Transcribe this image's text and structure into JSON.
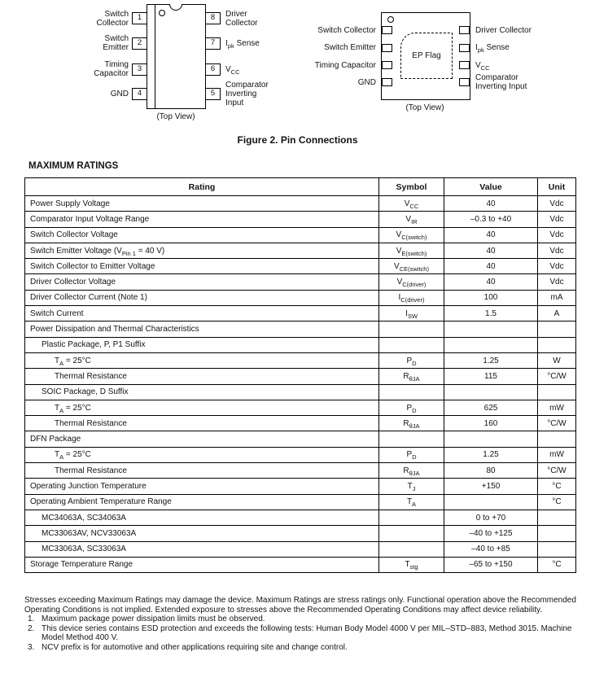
{
  "figure": {
    "caption": "Figure 2. Pin Connections",
    "top_view_label": "(Top View)",
    "dip": {
      "left_pins": [
        {
          "number": "1",
          "label_lines": [
            "Switch",
            "Collector"
          ]
        },
        {
          "number": "2",
          "label_lines": [
            "Switch",
            "Emitter"
          ]
        },
        {
          "number": "3",
          "label_lines": [
            "Timing",
            "Capacitor"
          ]
        },
        {
          "number": "4",
          "label_lines": [
            "GND"
          ]
        }
      ],
      "right_pins": [
        {
          "number": "8",
          "label_lines": [
            "Driver",
            "Collector"
          ]
        },
        {
          "number": "7",
          "label_lines": [
            "I~pk~ Sense"
          ]
        },
        {
          "number": "6",
          "label_lines": [
            "V~CC~"
          ]
        },
        {
          "number": "5",
          "label_lines": [
            "Comparator",
            "Inverting",
            "Input"
          ]
        }
      ]
    },
    "dfn": {
      "center_label": "EP Flag",
      "left_pins": [
        {
          "label_lines": [
            "Switch Collector"
          ]
        },
        {
          "label_lines": [
            "Switch Emitter"
          ]
        },
        {
          "label_lines": [
            "Timing Capacitor"
          ]
        },
        {
          "label_lines": [
            "GND"
          ]
        }
      ],
      "right_pins": [
        {
          "label_lines": [
            "Driver Collector"
          ]
        },
        {
          "label_lines": [
            "I~pk~ Sense"
          ]
        },
        {
          "label_lines": [
            "V~CC~"
          ]
        },
        {
          "label_lines": [
            "Comparator",
            "Inverting Input"
          ]
        }
      ]
    }
  },
  "table": {
    "title": "MAXIMUM RATINGS",
    "headers": [
      "Rating",
      "Symbol",
      "Value",
      "Unit"
    ],
    "rows": [
      {
        "rating": "Power Supply Voltage",
        "indent": 0,
        "symbol": "V~CC~",
        "value": "40",
        "unit": "Vdc"
      },
      {
        "rating": "Comparator Input Voltage Range",
        "indent": 0,
        "symbol": "V~IR~",
        "value": "–0.3 to +40",
        "unit": "Vdc"
      },
      {
        "rating": "Switch Collector Voltage",
        "indent": 0,
        "symbol": "V~C(switch)~",
        "value": "40",
        "unit": "Vdc"
      },
      {
        "rating": "Switch Emitter Voltage (V~Pin 1~ = 40 V)",
        "indent": 0,
        "symbol": "V~E(switch)~",
        "value": "40",
        "unit": "Vdc"
      },
      {
        "rating": "Switch Collector to Emitter Voltage",
        "indent": 0,
        "symbol": "V~CE(switch)~",
        "value": "40",
        "unit": "Vdc"
      },
      {
        "rating": "Driver Collector Voltage",
        "indent": 0,
        "symbol": "V~C(driver)~",
        "value": "40",
        "unit": "Vdc"
      },
      {
        "rating": "Driver Collector Current (Note 1)",
        "indent": 0,
        "symbol": "I~C(driver)~",
        "value": "100",
        "unit": "mA"
      },
      {
        "rating": "Switch Current",
        "indent": 0,
        "symbol": "I~SW~",
        "value": "1.5",
        "unit": "A"
      },
      {
        "rating": "Power Dissipation and Thermal Characteristics",
        "indent": 0,
        "symbol": "",
        "value": "",
        "unit": ""
      },
      {
        "rating": "Plastic Package, P, P1 Suffix",
        "indent": 1,
        "symbol": "",
        "value": "",
        "unit": ""
      },
      {
        "rating": "T~A~ = 25°C",
        "indent": 2,
        "symbol": "P~D~",
        "value": "1.25",
        "unit": "W"
      },
      {
        "rating": "Thermal Resistance",
        "indent": 2,
        "symbol": "R~θJA~",
        "value": "115",
        "unit": "°C/W"
      },
      {
        "rating": "SOIC Package, D Suffix",
        "indent": 1,
        "symbol": "",
        "value": "",
        "unit": ""
      },
      {
        "rating": "T~A~ = 25°C",
        "indent": 2,
        "symbol": "P~D~",
        "value": "625",
        "unit": "mW"
      },
      {
        "rating": "Thermal Resistance",
        "indent": 2,
        "symbol": "R~θJA~",
        "value": "160",
        "unit": "°C/W"
      },
      {
        "rating": "DFN Package",
        "indent": 0,
        "symbol": "",
        "value": "",
        "unit": ""
      },
      {
        "rating": "T~A~ = 25°C",
        "indent": 2,
        "symbol": "P~D~",
        "value": "1.25",
        "unit": "mW"
      },
      {
        "rating": "Thermal Resistance",
        "indent": 2,
        "symbol": "R~θJA~",
        "value": "80",
        "unit": "°C/W"
      },
      {
        "rating": "Operating Junction Temperature",
        "indent": 0,
        "symbol": "T~J~",
        "value": "+150",
        "unit": "°C"
      },
      {
        "rating": "Operating Ambient Temperature Range",
        "indent": 0,
        "symbol": "T~A~",
        "value": "",
        "unit": "°C"
      },
      {
        "rating": "MC34063A, SC34063A",
        "indent": 1,
        "symbol": "",
        "value": "0 to +70",
        "unit": ""
      },
      {
        "rating": "MC33063AV, NCV33063A",
        "indent": 1,
        "symbol": "",
        "value": "–40 to +125",
        "unit": ""
      },
      {
        "rating": "MC33063A, SC33063A",
        "indent": 1,
        "symbol": "",
        "value": "–40 to +85",
        "unit": ""
      },
      {
        "rating": "Storage Temperature Range",
        "indent": 0,
        "symbol": "T~stg~",
        "value": "–65 to +150",
        "unit": "°C"
      }
    ]
  },
  "footer": {
    "disclaimer": "Stresses exceeding Maximum Ratings may damage the device. Maximum Ratings are stress ratings only. Functional operation above the Recommended Operating Conditions is not implied. Extended exposure to stresses above the Recommended Operating Conditions may affect device reliability.",
    "notes": [
      {
        "num": "1.",
        "text": "Maximum package power dissipation limits must be observed."
      },
      {
        "num": "2.",
        "text": "This device series contains ESD protection and exceeds the following tests:  Human Body Model 4000 V per MIL–STD–883, Method 3015. Machine Model Method 400 V."
      },
      {
        "num": "3.",
        "text": "NCV prefix is for automotive and other applications requiring site and change control."
      }
    ]
  }
}
